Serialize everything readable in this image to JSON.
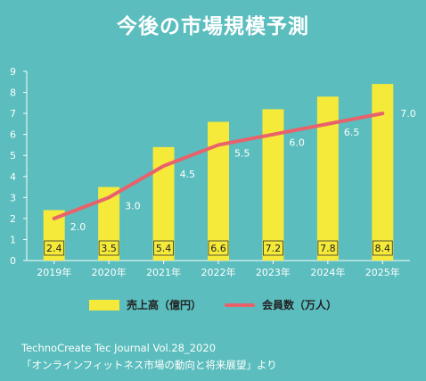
{
  "title": "今後の市場規模予測",
  "legend": {
    "bar_label": "売上高（億円）",
    "line_label": "会員数（万人）"
  },
  "source": {
    "line1": "TechnoCreate Tec Journal Vol.28_2020",
    "line2": "「オンラインフィットネス市場の動向と将来展望」より"
  },
  "colors": {
    "background": "#5bbdbd",
    "bar": "#f5e93a",
    "line": "#e8626b"
  },
  "chart_data": {
    "type": "bar",
    "categories": [
      "2019年",
      "2020年",
      "2021年",
      "2022年",
      "2023年",
      "2024年",
      "2025年"
    ],
    "series": [
      {
        "name": "売上高（億円）",
        "type": "bar",
        "values": [
          2.4,
          3.5,
          5.4,
          6.6,
          7.2,
          7.8,
          8.4
        ]
      },
      {
        "name": "会員数（万人）",
        "type": "line",
        "values": [
          2.0,
          3.0,
          4.5,
          5.5,
          6.0,
          6.5,
          7.0
        ]
      }
    ],
    "bar_labels": [
      "2.4",
      "3.5",
      "5.4",
      "6.6",
      "7.2",
      "7.8",
      "8.4"
    ],
    "line_labels": [
      "2.0",
      "3.0",
      "4.5",
      "5.5",
      "6.0",
      "6.5",
      "7.0"
    ],
    "yticks": [
      "0",
      "1",
      "2",
      "3",
      "4",
      "5",
      "6",
      "7",
      "8",
      "9"
    ],
    "ylim": [
      0,
      9
    ],
    "grid": false,
    "legend_position": "bottom"
  }
}
